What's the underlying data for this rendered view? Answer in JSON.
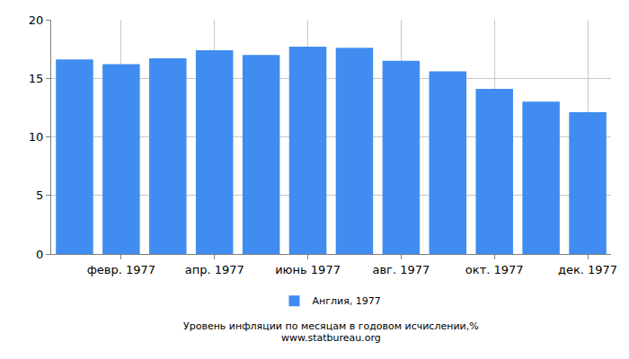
{
  "chart_data": {
    "type": "bar",
    "title": "Уровень инфляции по месяцам в годовом исчислении,%",
    "subtitle": "www.statbureau.org",
    "categories": [
      null,
      "февр. 1977",
      null,
      "апр. 1977",
      null,
      "июнь 1977",
      null,
      "авг. 1977",
      null,
      "окт. 1977",
      null,
      "дек. 1977"
    ],
    "series": [
      {
        "name": "Англия, 1977",
        "color": "#418cf0",
        "values": [
          16.6,
          16.2,
          16.7,
          17.4,
          17.0,
          17.7,
          17.6,
          16.5,
          15.6,
          14.1,
          13.0,
          12.1
        ]
      }
    ],
    "ylim": [
      0,
      20
    ],
    "yticks": [
      0,
      5,
      10,
      15,
      20
    ],
    "grid": true,
    "legend": "bottom"
  }
}
